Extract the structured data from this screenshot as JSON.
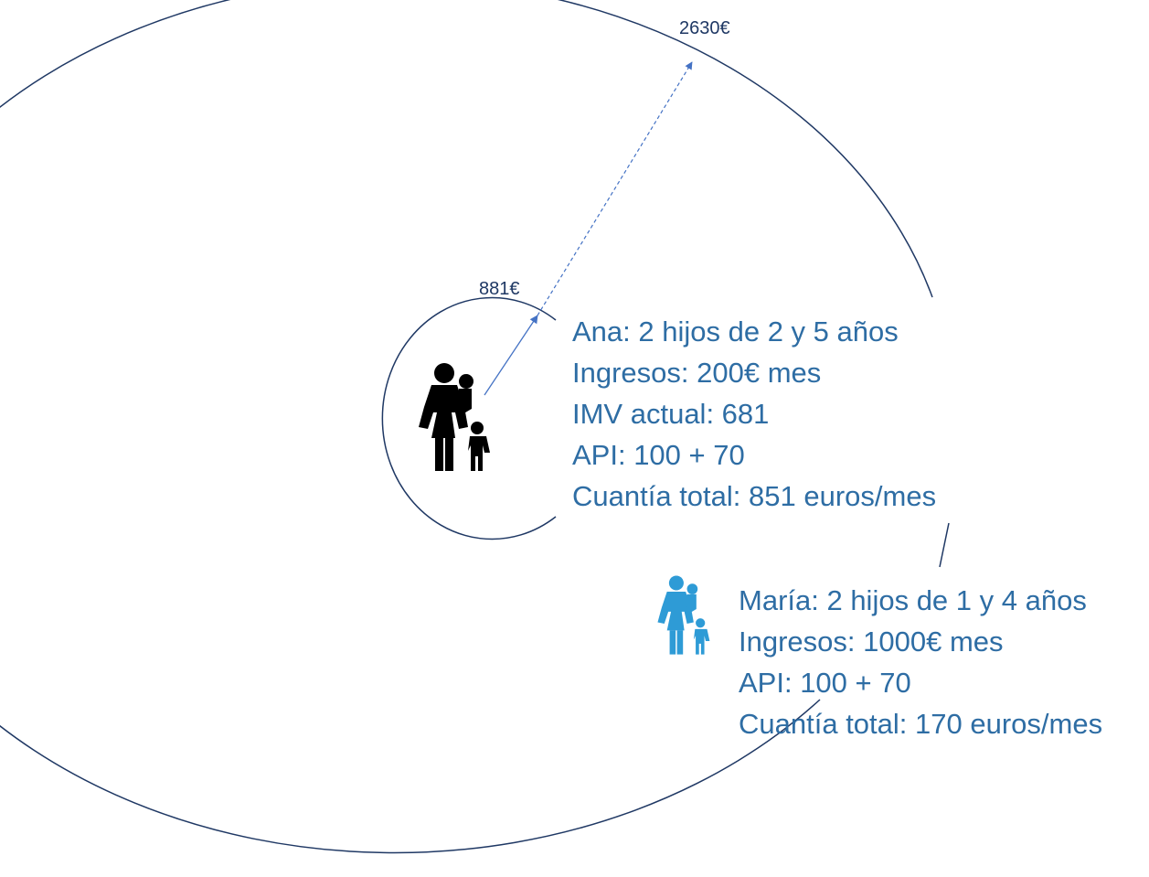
{
  "outer_circle": {
    "value_label": "2630€"
  },
  "inner_circle": {
    "value_label": "881€"
  },
  "ana": {
    "icon": "mother-with-children-icon",
    "color": "#000000",
    "lines": [
      "Ana: 2 hijos de 2 y 5 años",
      "Ingresos: 200€ mes",
      "IMV actual: 681",
      "API: 100 + 70",
      "Cuantía total: 851 euros/mes"
    ]
  },
  "maria": {
    "icon": "mother-with-children-icon",
    "color": "#2e9bd6",
    "lines": [
      "María: 2 hijos de 1 y 4 años",
      "Ingresos: 1000€ mes",
      "API: 100 + 70",
      "Cuantía total: 170 euros/mes"
    ]
  },
  "colors": {
    "circle_stroke": "#1f3864",
    "arrow": "#4472c4",
    "text": "#2e6da4"
  }
}
